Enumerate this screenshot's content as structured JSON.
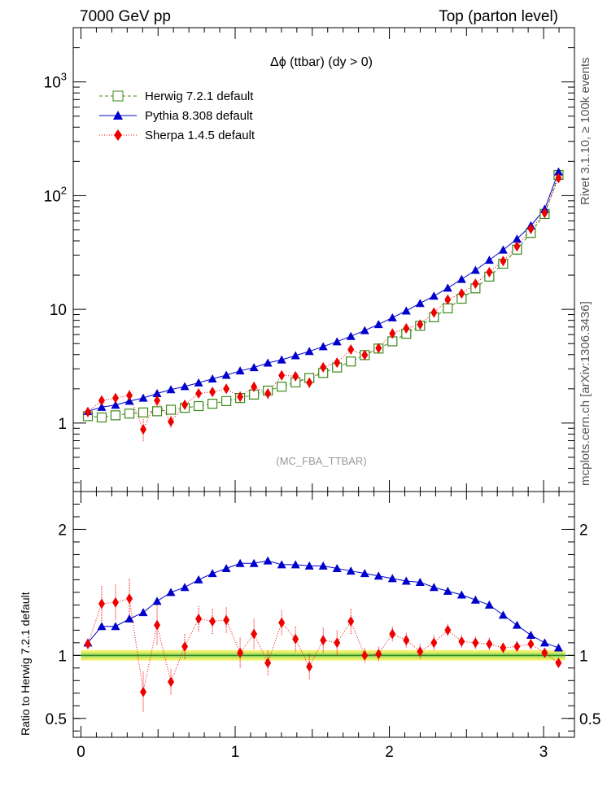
{
  "header": {
    "left": "7000 GeV pp",
    "right": "Top (parton level)"
  },
  "side_labels": {
    "rivet": "Rivet 3.1.10, ≥ 100k events",
    "mcplots": "mcplots.cern.ch [arXiv:1306.3436]"
  },
  "colors": {
    "herwig": "#3a8a1a",
    "pythia": "#0000cc",
    "sherpa": "#ee0000",
    "band_yellow": "#f0f060",
    "band_green": "#a8e070"
  },
  "chart_data": [
    {
      "type": "scatter",
      "title": "Δϕ (ttbar) (dy > 0)",
      "watermark": "(MC_FBA_TTBAR)",
      "yscale": "log",
      "ylim": [
        0.25,
        3000
      ],
      "xlim": [
        -0.05,
        3.2
      ],
      "ytick_labels": [
        "1",
        "10",
        "10²",
        "10³"
      ],
      "legend_placement": "top-left",
      "x": [
        0.0449,
        0.1346,
        0.2244,
        0.3142,
        0.4039,
        0.4937,
        0.5834,
        0.6732,
        0.763,
        0.8527,
        0.9425,
        1.0322,
        1.122,
        1.2118,
        1.3015,
        1.3913,
        1.481,
        1.5708,
        1.6606,
        1.7503,
        1.8401,
        1.9298,
        2.0196,
        2.1094,
        2.1991,
        2.2889,
        2.3786,
        2.4684,
        2.5582,
        2.6479,
        2.7377,
        2.8274,
        2.9172,
        3.0069,
        3.0967
      ],
      "series": [
        {
          "name": "Herwig 7.2.1 default",
          "marker": "open-square",
          "values": [
            1.15,
            1.12,
            1.17,
            1.21,
            1.24,
            1.27,
            1.31,
            1.36,
            1.41,
            1.48,
            1.56,
            1.66,
            1.78,
            1.93,
            2.09,
            2.28,
            2.49,
            2.76,
            3.08,
            3.48,
            3.96,
            4.52,
            5.23,
            6.1,
            7.16,
            8.52,
            10.2,
            12.4,
            15.3,
            19.4,
            25.2,
            33.5,
            47.0,
            69.0,
            152.0
          ]
        },
        {
          "name": "Pythia 8.308 default",
          "marker": "filled-triangle",
          "values": [
            1.27,
            1.38,
            1.44,
            1.56,
            1.66,
            1.82,
            1.97,
            2.1,
            2.26,
            2.45,
            2.64,
            2.88,
            3.08,
            3.38,
            3.6,
            3.92,
            4.27,
            4.71,
            5.2,
            5.8,
            6.52,
            7.38,
            8.45,
            9.7,
            11.3,
            13.1,
            15.4,
            18.4,
            22.1,
            27.1,
            33.3,
            41.6,
            54.5,
            76.0,
            162.0
          ],
          "ratio": [
            1.1,
            1.23,
            1.23,
            1.29,
            1.34,
            1.43,
            1.5,
            1.54,
            1.6,
            1.65,
            1.69,
            1.73,
            1.73,
            1.75,
            1.72,
            1.72,
            1.71,
            1.71,
            1.69,
            1.67,
            1.65,
            1.63,
            1.61,
            1.59,
            1.58,
            1.54,
            1.51,
            1.48,
            1.44,
            1.4,
            1.32,
            1.24,
            1.16,
            1.1,
            1.06
          ]
        },
        {
          "name": "Sherpa 1.4.5 default",
          "marker": "filled-diamond",
          "values": [
            1.25,
            1.58,
            1.66,
            1.75,
            0.88,
            1.58,
            1.03,
            1.45,
            1.82,
            1.88,
            2.0,
            1.7,
            2.08,
            1.82,
            2.63,
            2.58,
            2.27,
            3.09,
            3.4,
            4.43,
            3.97,
            4.56,
            6.13,
            6.81,
            7.36,
            9.36,
            12.2,
            13.8,
            16.8,
            21.2,
            26.6,
            35.8,
            51.0,
            70.4,
            143.0
          ],
          "ratio": [
            1.09,
            1.41,
            1.42,
            1.45,
            0.71,
            1.24,
            0.79,
            1.07,
            1.29,
            1.27,
            1.28,
            1.02,
            1.17,
            0.94,
            1.26,
            1.13,
            0.91,
            1.12,
            1.1,
            1.27,
            1.0,
            1.01,
            1.17,
            1.12,
            1.03,
            1.1,
            1.2,
            1.11,
            1.1,
            1.09,
            1.06,
            1.07,
            1.09,
            1.02,
            0.94
          ],
          "ratio_err": [
            0.03,
            0.14,
            0.14,
            0.16,
            0.16,
            0.16,
            0.1,
            0.1,
            0.1,
            0.1,
            0.1,
            0.12,
            0.12,
            0.1,
            0.1,
            0.1,
            0.1,
            0.1,
            0.1,
            0.1,
            0.06,
            0.06,
            0.06,
            0.06,
            0.06,
            0.06,
            0.05,
            0.05,
            0.05,
            0.05,
            0.04,
            0.04,
            0.04,
            0.03,
            0.02
          ]
        }
      ]
    },
    {
      "type": "scatter",
      "ylabel": "Ratio to Herwig 7.2.1 default",
      "ylim": [
        0.35,
        2.3
      ],
      "xlim": [
        -0.05,
        3.2
      ],
      "ytick_labels": [
        "0.5",
        "1",
        "2"
      ],
      "xtick_labels": [
        "0",
        "1",
        "2",
        "3"
      ]
    }
  ]
}
